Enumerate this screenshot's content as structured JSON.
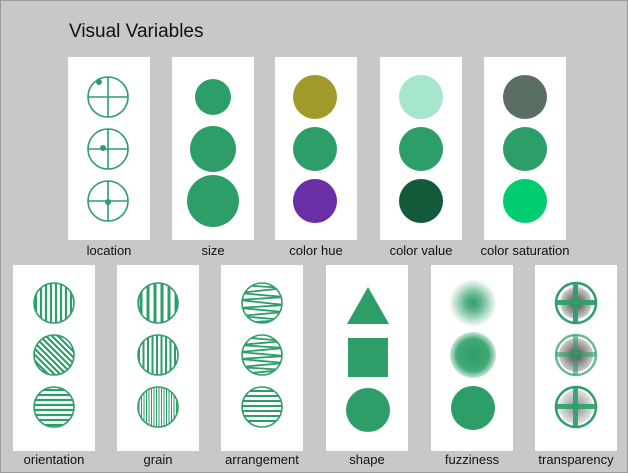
{
  "title": "Visual Variables",
  "colors": {
    "green": "#2e9e68",
    "hue_olive": "#a09a2a",
    "hue_purple": "#6a2ea6",
    "value_light": "#a6e6cc",
    "value_dark": "#125a3a",
    "saturation_low": "#5a6e64",
    "saturation_high": "#00cc70"
  },
  "panels": [
    {
      "id": "location",
      "label": "location"
    },
    {
      "id": "size",
      "label": "size"
    },
    {
      "id": "color-hue",
      "label": "color hue"
    },
    {
      "id": "color-value",
      "label": "color value"
    },
    {
      "id": "color-saturation",
      "label": "color saturation"
    },
    {
      "id": "orientation",
      "label": "orientation"
    },
    {
      "id": "grain",
      "label": "grain"
    },
    {
      "id": "arrangement",
      "label": "arrangement"
    },
    {
      "id": "shape",
      "label": "shape"
    },
    {
      "id": "fuzziness",
      "label": "fuzziness"
    },
    {
      "id": "transparency",
      "label": "transparency"
    }
  ]
}
